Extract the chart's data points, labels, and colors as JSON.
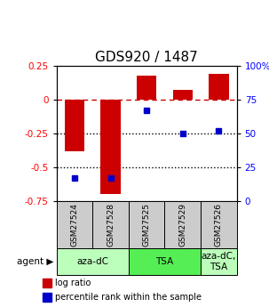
{
  "title": "GDS920 / 1487",
  "samples": [
    "GSM27524",
    "GSM27528",
    "GSM27525",
    "GSM27529",
    "GSM27526"
  ],
  "log_ratio": [
    -0.38,
    -0.7,
    0.18,
    0.07,
    0.19
  ],
  "percentile_rank": [
    17,
    17,
    67,
    50,
    52
  ],
  "left_ylim": [
    -0.75,
    0.25
  ],
  "left_yticks": [
    0.25,
    0.0,
    -0.25,
    -0.5,
    -0.75
  ],
  "left_yticklabels": [
    "0.25",
    "0",
    "-0.25",
    "-0.5",
    "-0.75"
  ],
  "right_ylim": [
    0,
    100
  ],
  "right_yticks": [
    100,
    75,
    50,
    25,
    0
  ],
  "right_yticklabels": [
    "100%",
    "75",
    "50",
    "25",
    "0"
  ],
  "bar_color": "#cc0000",
  "dot_color": "#0000cc",
  "agent_groups": [
    {
      "label": "aza-dC",
      "span": 2,
      "color": "#bbffbb"
    },
    {
      "label": "TSA",
      "span": 2,
      "color": "#55ee55"
    },
    {
      "label": "aza-dC,\nTSA",
      "span": 1,
      "color": "#bbffbb"
    }
  ],
  "legend_items": [
    {
      "color": "#cc0000",
      "label": "log ratio"
    },
    {
      "color": "#0000cc",
      "label": "percentile rank within the sample"
    }
  ],
  "hline_0_color": "#cc0000",
  "hline_dotted_color": "#000000",
  "sample_box_color": "#cccccc",
  "title_fontsize": 11,
  "tick_fontsize": 7.5,
  "sample_fontsize": 6.5,
  "agent_fontsize": 7.5,
  "legend_fontsize": 7
}
